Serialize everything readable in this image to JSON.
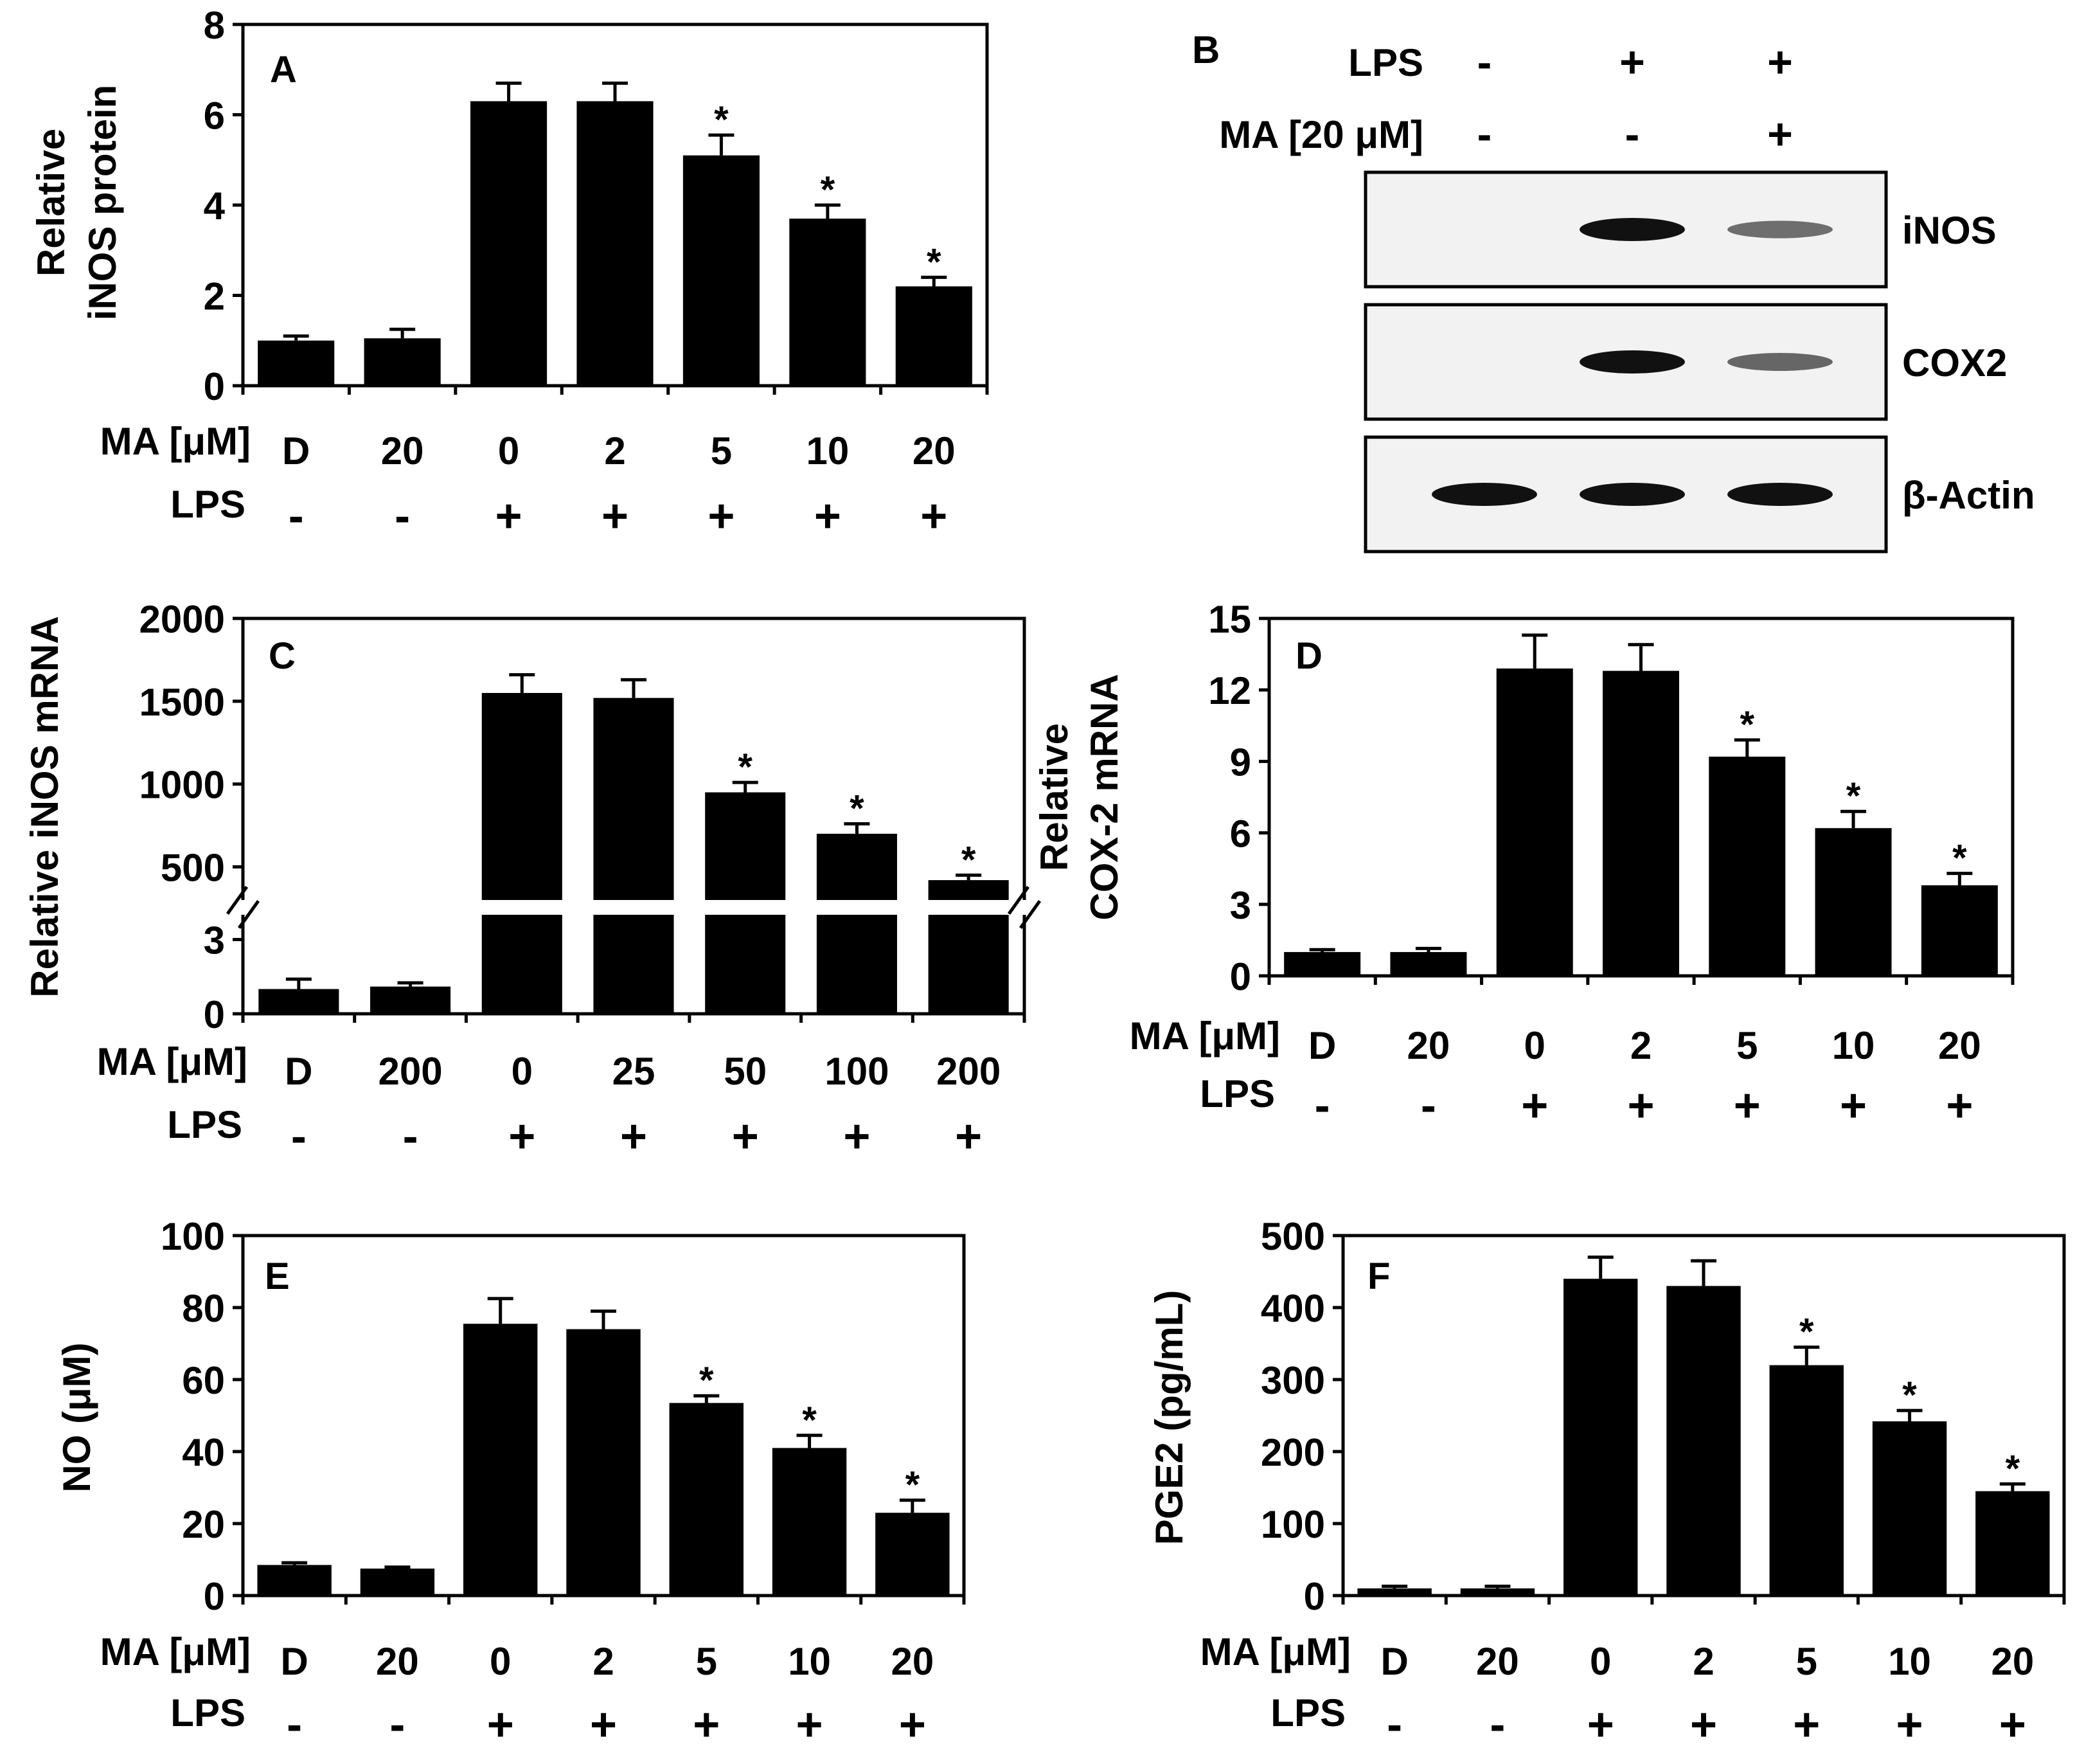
{
  "figure": {
    "background": "#ffffff",
    "bar_color": "#000000",
    "blot_background": "#f2f2f2",
    "band_color": "#111111"
  },
  "chart_data": [
    {
      "panel": "A",
      "type": "bar",
      "ylabel_lines": [
        "Relative",
        "iNOS protein"
      ],
      "ylim": [
        0,
        8
      ],
      "yticks": [
        0,
        2,
        4,
        6,
        8
      ],
      "ma_label": "MA [μM]",
      "lps_label": "LPS",
      "ma_values": [
        "D",
        "20",
        "0",
        "2",
        "5",
        "10",
        "20"
      ],
      "lps_values": [
        "-",
        "-",
        "+",
        "+",
        "+",
        "+",
        "+"
      ],
      "values": [
        1.0,
        1.05,
        6.3,
        6.3,
        5.1,
        3.7,
        2.2
      ],
      "errors": [
        0.1,
        0.2,
        0.4,
        0.4,
        0.45,
        0.3,
        0.2
      ],
      "significant": [
        false,
        false,
        false,
        false,
        true,
        true,
        true
      ]
    },
    {
      "panel": "C",
      "type": "bar",
      "ylabel_lines": [
        "Relative iNOS mRNA"
      ],
      "axis_break": true,
      "lower_ylim": [
        0,
        4
      ],
      "lower_yticks": [
        0,
        3
      ],
      "upper_ylim": [
        300,
        2000
      ],
      "upper_yticks": [
        500,
        1000,
        1500,
        2000
      ],
      "ma_label": "MA [μM]",
      "lps_label": "LPS",
      "ma_values": [
        "D",
        "200",
        "0",
        "25",
        "50",
        "100",
        "200"
      ],
      "lps_values": [
        "-",
        "-",
        "+",
        "+",
        "+",
        "+",
        "+"
      ],
      "values": [
        1.0,
        1.1,
        1550,
        1520,
        950,
        700,
        420
      ],
      "errors": [
        0.4,
        0.15,
        110,
        110,
        60,
        60,
        30
      ],
      "significant": [
        false,
        false,
        false,
        false,
        true,
        true,
        true
      ]
    },
    {
      "panel": "D",
      "type": "bar",
      "ylabel_lines": [
        "Relative",
        "COX-2 mRNA"
      ],
      "ylim": [
        0,
        15
      ],
      "yticks": [
        0,
        3,
        6,
        9,
        12,
        15
      ],
      "ma_label": "MA [μM]",
      "lps_label": "LPS",
      "ma_values": [
        "D",
        "20",
        "0",
        "2",
        "5",
        "10",
        "20"
      ],
      "lps_values": [
        "-",
        "-",
        "+",
        "+",
        "+",
        "+",
        "+"
      ],
      "values": [
        1.0,
        1.0,
        12.9,
        12.8,
        9.2,
        6.2,
        3.8
      ],
      "errors": [
        0.1,
        0.15,
        1.4,
        1.1,
        0.7,
        0.7,
        0.5
      ],
      "significant": [
        false,
        false,
        false,
        false,
        true,
        true,
        true
      ]
    },
    {
      "panel": "E",
      "type": "bar",
      "ylabel_lines": [
        "NO (μM)"
      ],
      "ylim": [
        0,
        100
      ],
      "yticks": [
        0,
        20,
        40,
        60,
        80,
        100
      ],
      "ma_label": "MA [μM]",
      "lps_label": "LPS",
      "ma_values": [
        "D",
        "20",
        "0",
        "2",
        "5",
        "10",
        "20"
      ],
      "lps_values": [
        "-",
        "-",
        "+",
        "+",
        "+",
        "+",
        "+"
      ],
      "values": [
        8.5,
        7.5,
        75.5,
        74,
        53.5,
        41,
        23
      ],
      "errors": [
        0.6,
        0.4,
        7,
        5,
        2,
        3.5,
        3.5
      ],
      "significant": [
        false,
        false,
        false,
        false,
        true,
        true,
        true
      ]
    },
    {
      "panel": "F",
      "type": "bar",
      "ylabel_lines": [
        "PGE2 (pg/mL)"
      ],
      "ylim": [
        0,
        500
      ],
      "yticks": [
        0,
        100,
        200,
        300,
        400,
        500
      ],
      "ma_label": "MA [μM]",
      "lps_label": "LPS",
      "ma_values": [
        "D",
        "20",
        "0",
        "2",
        "5",
        "10",
        "20"
      ],
      "lps_values": [
        "-",
        "-",
        "+",
        "+",
        "+",
        "+",
        "+"
      ],
      "values": [
        10,
        10,
        440,
        430,
        320,
        242,
        145
      ],
      "errors": [
        3,
        3,
        30,
        35,
        25,
        15,
        10
      ],
      "significant": [
        false,
        false,
        false,
        false,
        true,
        true,
        true
      ]
    }
  ],
  "blot": {
    "panel": "B",
    "lps_label": "LPS",
    "ma_label": "MA [20 μM]",
    "lps_values": [
      "-",
      "+",
      "+"
    ],
    "ma_values": [
      "-",
      "-",
      "+"
    ],
    "proteins": [
      {
        "name": "iNOS",
        "band_intensities": [
          0,
          1.0,
          0.45
        ]
      },
      {
        "name": "COX2",
        "band_intensities": [
          0,
          1.0,
          0.5
        ]
      },
      {
        "name": "β-Actin",
        "band_intensities": [
          1.0,
          1.0,
          1.0
        ]
      }
    ]
  }
}
